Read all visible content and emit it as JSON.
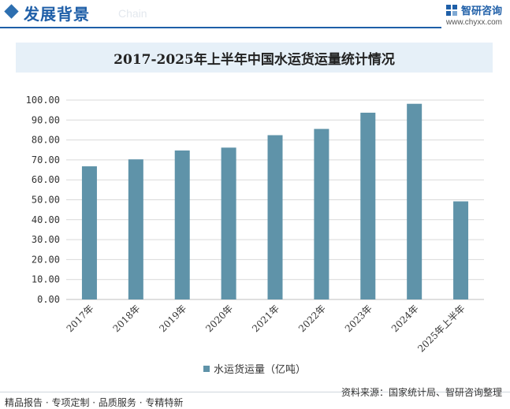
{
  "header": {
    "section_title": "发展背景",
    "section_subtitle": "Chain",
    "brand_name": "智研咨询",
    "brand_url": "www.chyxx.com"
  },
  "footer": {
    "tags": "精品报告 · 专项定制 · 品质服务 · 专精特新",
    "source": "资料来源：国家统计局、智研咨询整理"
  },
  "colors": {
    "bar": "#5f93a9",
    "accent": "#1f5fa8"
  },
  "chart_data": {
    "type": "bar",
    "title": "2017-2025年上半年中国水运货运量统计情况",
    "categories": [
      "2017年",
      "2018年",
      "2019年",
      "2020年",
      "2021年",
      "2022年",
      "2023年",
      "2024年",
      "2025年上半年"
    ],
    "series": [
      {
        "name": "水运货运量（亿吨）",
        "values": [
          66.78,
          70.27,
          74.72,
          76.16,
          82.4,
          85.54,
          93.67,
          98.14,
          49.2
        ]
      }
    ],
    "ylim": [
      0,
      100
    ],
    "yticks": [
      "100.00",
      "90.00",
      "80.00",
      "70.00",
      "60.00",
      "50.00",
      "40.00",
      "30.00",
      "20.00",
      "10.00",
      "0.00"
    ],
    "grid": true,
    "legend": "bottom"
  }
}
